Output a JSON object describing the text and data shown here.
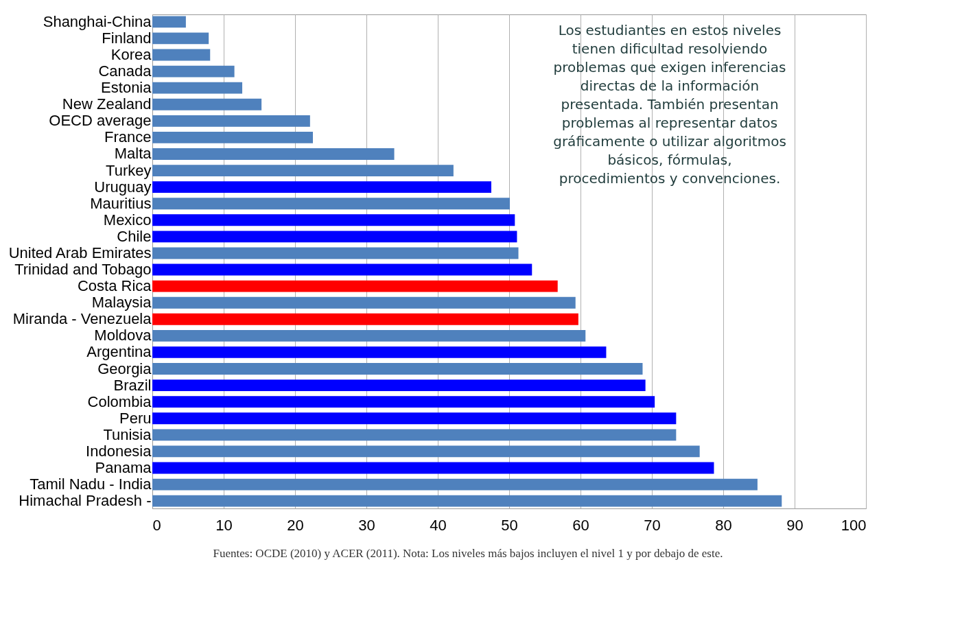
{
  "chart_data": {
    "type": "bar",
    "orientation": "horizontal",
    "categories": [
      "Shanghai-China",
      "Finland",
      "Korea",
      "Canada",
      "Estonia",
      "New Zealand",
      "OECD average",
      "France",
      "Malta",
      "Turkey",
      "Uruguay",
      "Mauritius",
      "Mexico",
      "Chile",
      "United Arab Emirates",
      "Trinidad and Tobago",
      "Costa Rica",
      "Malaysia",
      "Miranda - Venezuela",
      "Moldova",
      "Argentina",
      "Georgia",
      "Brazil",
      "Colombia",
      "Peru",
      "Tunisia",
      "Indonesia",
      "Panama",
      "Tamil Nadu - India",
      "Himachal Pradesh -"
    ],
    "values": [
      4.7,
      7.9,
      8.1,
      11.5,
      12.6,
      15.3,
      22.1,
      22.5,
      33.9,
      42.2,
      47.5,
      50.1,
      50.8,
      51.1,
      51.3,
      53.2,
      56.8,
      59.3,
      59.7,
      60.7,
      63.6,
      68.7,
      69.1,
      70.4,
      73.4,
      73.4,
      76.7,
      78.7,
      84.8,
      88.2
    ],
    "colors": [
      "#4f81bd",
      "#4f81bd",
      "#4f81bd",
      "#4f81bd",
      "#4f81bd",
      "#4f81bd",
      "#4f81bd",
      "#4f81bd",
      "#4f81bd",
      "#4f81bd",
      "#0000ff",
      "#4f81bd",
      "#0000ff",
      "#0000ff",
      "#4f81bd",
      "#0000ff",
      "#ff0000",
      "#4f81bd",
      "#ff0000",
      "#4f81bd",
      "#0000ff",
      "#4f81bd",
      "#0000ff",
      "#0000ff",
      "#0000ff",
      "#4f81bd",
      "#4f81bd",
      "#0000ff",
      "#4f81bd",
      "#4f81bd"
    ],
    "xlim": [
      0,
      100
    ],
    "xticks": [
      0,
      10,
      20,
      30,
      40,
      50,
      60,
      70,
      80,
      90,
      100
    ],
    "grid": "x",
    "legend": false,
    "annotations": [
      "Los estudiantes en estos niveles\ntienen dificultad resolviendo\nproblemas que exigen inferencias\ndirectas de la información\npresentada. También presentan\nproblemas al representar datos\ngráficamente o utilizar algoritmos\nbásicos, fórmulas,\nprocedimientos y convenciones.",
      "Fuentes: OCDE (2010) y ACER (2011). Nota: Los niveles más bajos incluyen el nivel 1 y por debajo de este."
    ]
  }
}
